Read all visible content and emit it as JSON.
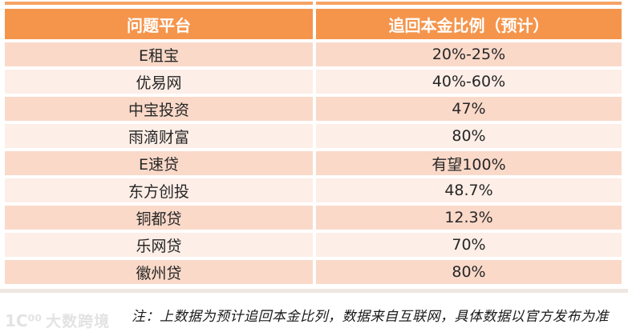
{
  "table": {
    "headers": [
      "问题平台",
      "追回本金比例（预计）"
    ],
    "rows": [
      {
        "platform": "E租宝",
        "ratio": "20%-25%"
      },
      {
        "platform": "优易网",
        "ratio": "40%-60%"
      },
      {
        "platform": "中宝投资",
        "ratio": "47%"
      },
      {
        "platform": "雨滴财富",
        "ratio": "80%"
      },
      {
        "platform": "E速贷",
        "ratio": "有望100%"
      },
      {
        "platform": "东方创投",
        "ratio": "48.7%"
      },
      {
        "platform": "铜都贷",
        "ratio": "12.3%"
      },
      {
        "platform": "乐网贷",
        "ratio": "70%"
      },
      {
        "platform": "徽州贷",
        "ratio": "80%"
      }
    ]
  },
  "note": "注：上数据为预计追回本金比列，数据来自互联网，具体数据以官方发布为准",
  "watermark": {
    "logo": "1C⁰⁰",
    "text": "大数跨境"
  },
  "colors": {
    "header_bg": "#f5954c",
    "row_dark": "#fad9c9",
    "row_light": "#fdeee7",
    "header_text": "#ffffff",
    "cell_text": "#262626",
    "note_text": "#1a1a1a",
    "watermark_text": "#e3e3e3"
  }
}
